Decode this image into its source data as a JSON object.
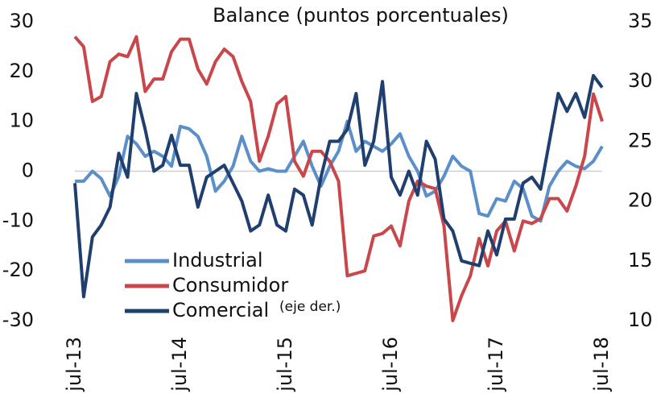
{
  "chart_data": {
    "type": "line",
    "title": "Balance (puntos porcentuales)",
    "annotation": "(eje der.)",
    "categories": [
      "jul-13",
      null,
      null,
      null,
      null,
      null,
      null,
      null,
      null,
      null,
      null,
      null,
      "jul-14",
      null,
      null,
      null,
      null,
      null,
      null,
      null,
      null,
      null,
      null,
      null,
      "jul-15",
      null,
      null,
      null,
      null,
      null,
      null,
      null,
      null,
      null,
      null,
      null,
      "jul-16",
      null,
      null,
      null,
      null,
      null,
      null,
      null,
      null,
      null,
      null,
      null,
      "jul-17",
      null,
      null,
      null,
      null,
      null,
      null,
      null,
      null,
      null,
      null,
      null,
      "jul-18"
    ],
    "series": [
      {
        "name": "Industrial",
        "color": "#5b8fc9",
        "values": [
          -2,
          -2,
          0,
          -1.5,
          -5,
          -1,
          7,
          5.5,
          3,
          4,
          3,
          1,
          9,
          8.5,
          7,
          3,
          -4,
          -2,
          1,
          7,
          2,
          0,
          0.5,
          0,
          0,
          3,
          6,
          1,
          -3,
          1,
          4,
          10,
          4,
          6,
          5,
          4,
          5.5,
          7.5,
          3,
          0,
          -5,
          -4,
          -1,
          3,
          1,
          0,
          -8.5,
          -9,
          -5.5,
          -6,
          -2,
          -3.5,
          -9,
          -10,
          -3,
          0,
          2,
          1,
          0.5,
          2,
          5
        ]
      },
      {
        "name": "Consumidor",
        "color": "#c9474a",
        "values": [
          27,
          25,
          14,
          15,
          22,
          23.5,
          23,
          27,
          16,
          18.5,
          18.5,
          24,
          26.5,
          26.5,
          20.5,
          17.5,
          22,
          24.5,
          23,
          18,
          14,
          2,
          7,
          13.5,
          15,
          2,
          -1,
          4,
          4,
          2,
          -2,
          -21,
          -20.5,
          -20,
          -13,
          -12.5,
          -11,
          -15,
          -6,
          -2,
          -3,
          -3.5,
          -11,
          -30,
          -25,
          -21,
          -13.5,
          -19,
          -12,
          -10,
          -16,
          -10,
          -10.5,
          -9.5,
          -5.5,
          -5.5,
          -8,
          -3,
          3,
          15.5,
          10
        ]
      },
      {
        "name": "Comercial",
        "color": "#1f3f6e",
        "axis": "y2",
        "values": [
          21.5,
          12,
          17,
          18,
          19.5,
          24,
          22,
          29,
          26,
          22.5,
          23,
          25.5,
          23,
          23,
          19.5,
          22,
          22.5,
          23,
          21.5,
          20,
          17.5,
          18,
          20.5,
          18,
          17.5,
          21,
          20.5,
          18,
          22,
          25,
          25,
          26,
          29,
          23,
          25,
          30,
          22,
          20.5,
          22.5,
          20.5,
          25,
          23.5,
          18.5,
          17.5,
          15,
          14.8,
          14.6,
          17.5,
          15.5,
          18.5,
          18.5,
          21.5,
          22,
          21,
          25,
          29,
          27.5,
          29,
          27,
          30.5,
          29.5
        ]
      }
    ],
    "ylim": [
      -30,
      30
    ],
    "yticks": [
      -30,
      -20,
      -10,
      0,
      10,
      20,
      30
    ],
    "y2lim": [
      10,
      35
    ],
    "y2ticks": [
      10,
      15,
      20,
      25,
      30,
      35
    ],
    "legend": "lower-left"
  }
}
